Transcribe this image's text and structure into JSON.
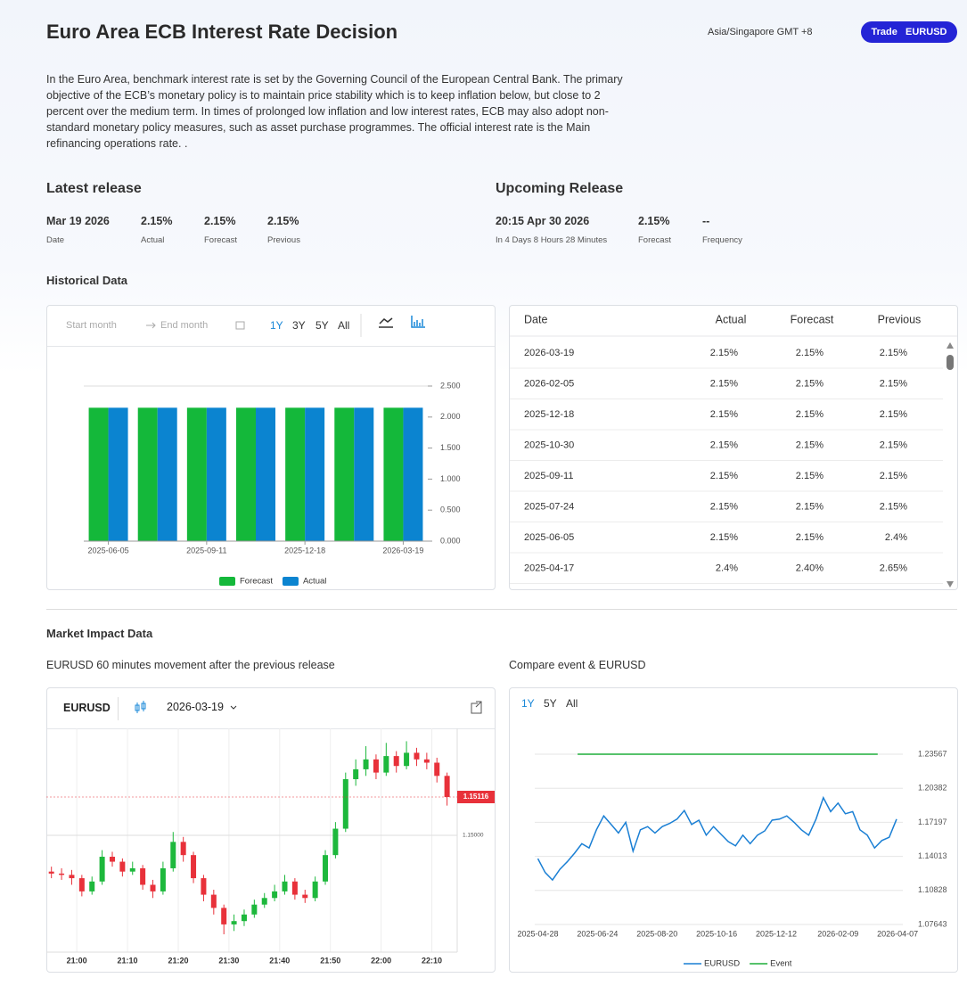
{
  "header": {
    "title": "Euro Area ECB Interest Rate Decision",
    "timezone": "Asia/Singapore GMT +8",
    "trade_button": {
      "label": "Trade",
      "symbol": "EURUSD"
    }
  },
  "description": "In the Euro Area, benchmark interest rate is set by the Governing Council of the European Central Bank. The primary objective of the ECB’s monetary policy is to maintain price stability which is to keep inflation below, but close to 2 percent over the medium term. In times of prolonged low inflation and low interest rates, ECB may also adopt non-standard monetary policy measures, such as asset purchase programmes. The official interest rate is the Main refinancing operations rate. .",
  "latest_release": {
    "heading": "Latest release",
    "items": [
      {
        "value": "Mar 19 2026",
        "label": "Date"
      },
      {
        "value": "2.15%",
        "label": "Actual"
      },
      {
        "value": "2.15%",
        "label": "Forecast"
      },
      {
        "value": "2.15%",
        "label": "Previous"
      }
    ]
  },
  "upcoming_release": {
    "heading": "Upcoming Release",
    "items": [
      {
        "value": "20:15 Apr 30 2026",
        "label": "In 4 Days 8 Hours 28 Minutes"
      },
      {
        "value": "2.15%",
        "label": "Forecast"
      },
      {
        "value": "--",
        "label": "Frequency"
      }
    ]
  },
  "historical": {
    "heading": "Historical Data",
    "start_placeholder": "Start month",
    "end_placeholder": "End month",
    "ranges": [
      "1Y",
      "3Y",
      "5Y",
      "All"
    ],
    "active_range": "1Y"
  },
  "table": {
    "columns": [
      "Date",
      "Actual",
      "Forecast",
      "Previous"
    ],
    "rows": [
      [
        "2026-03-19",
        "2.15%",
        "2.15%",
        "2.15%"
      ],
      [
        "2026-02-05",
        "2.15%",
        "2.15%",
        "2.15%"
      ],
      [
        "2025-12-18",
        "2.15%",
        "2.15%",
        "2.15%"
      ],
      [
        "2025-10-30",
        "2.15%",
        "2.15%",
        "2.15%"
      ],
      [
        "2025-09-11",
        "2.15%",
        "2.15%",
        "2.15%"
      ],
      [
        "2025-07-24",
        "2.15%",
        "2.15%",
        "2.15%"
      ],
      [
        "2025-06-05",
        "2.15%",
        "2.15%",
        "2.4%"
      ],
      [
        "2025-04-17",
        "2.4%",
        "2.40%",
        "2.65%"
      ]
    ]
  },
  "market_impact": {
    "heading": "Market Impact Data",
    "left_title": "EURUSD 60 minutes movement after the previous release",
    "right_title": "Compare event & EURUSD",
    "symbol": "EURUSD",
    "date": "2026-03-19",
    "ranges": [
      "1Y",
      "5Y",
      "All"
    ],
    "active_range": "1Y"
  },
  "chart_data": [
    {
      "type": "bar",
      "categories": [
        "2025-06-05",
        null,
        "2025-09-11",
        null,
        "2025-12-18",
        null,
        "2026-03-19"
      ],
      "series": [
        {
          "name": "Forecast",
          "color": "#14b83a",
          "values": [
            2.15,
            2.15,
            2.15,
            2.15,
            2.15,
            2.15,
            2.15
          ]
        },
        {
          "name": "Actual",
          "color": "#0b84d0",
          "values": [
            2.15,
            2.15,
            2.15,
            2.15,
            2.15,
            2.15,
            2.15
          ]
        }
      ],
      "ylim": [
        0,
        2.5
      ],
      "yticks": [
        {
          "value": 0,
          "label": "0.000"
        },
        {
          "value": 0.5,
          "label": "0.500"
        },
        {
          "value": 1,
          "label": "1.000"
        },
        {
          "value": 1.5,
          "label": "1.500"
        },
        {
          "value": 2,
          "label": "2.000"
        },
        {
          "value": 2.5,
          "label": "2.500"
        }
      ],
      "grid": false
    },
    {
      "type": "candlestick",
      "x": [
        "20:55",
        "20:57",
        "20:59",
        "21:01",
        "21:03",
        "21:05",
        "21:07",
        "21:09",
        "21:11",
        "21:13",
        "21:15",
        "21:17",
        "21:19",
        "21:21",
        "21:23",
        "21:25",
        "21:27",
        "21:29",
        "21:31",
        "21:33",
        "21:35",
        "21:37",
        "21:39",
        "21:41",
        "21:43",
        "21:45",
        "21:47",
        "21:49",
        "21:51",
        "21:53",
        "21:55",
        "21:57",
        "21:59",
        "22:01",
        "22:03",
        "22:05",
        "22:07",
        "22:09",
        "22:11",
        "22:13"
      ],
      "open": [
        1.1489,
        1.14884,
        1.1488,
        1.1487,
        1.1483,
        1.1486,
        1.14935,
        1.1492,
        1.1489,
        1.149,
        1.1485,
        1.1483,
        1.149,
        1.1498,
        1.1494,
        1.1487,
        1.1482,
        1.1478,
        1.1473,
        1.1474,
        1.1476,
        1.1479,
        1.1481,
        1.1483,
        1.1486,
        1.1482,
        1.1481,
        1.1486,
        1.1494,
        1.1502,
        1.1517,
        1.152,
        1.1523,
        1.1519,
        1.1524,
        1.1521,
        1.1525,
        1.1523,
        1.1522,
        1.1518
      ],
      "high": [
        1.14905,
        1.149,
        1.14895,
        1.1488,
        1.14875,
        1.14955,
        1.1495,
        1.1493,
        1.1492,
        1.1491,
        1.14865,
        1.1492,
        1.1501,
        1.14995,
        1.1495,
        1.1488,
        1.14835,
        1.1479,
        1.1476,
        1.14775,
        1.14805,
        1.14825,
        1.1485,
        1.1488,
        1.1487,
        1.14835,
        1.14875,
        1.14955,
        1.1504,
        1.1519,
        1.1523,
        1.1527,
        1.15245,
        1.1528,
        1.15255,
        1.15285,
        1.15265,
        1.1525,
        1.15235,
        1.1519
      ],
      "low": [
        1.1487,
        1.14865,
        1.1485,
        1.14815,
        1.1482,
        1.1485,
        1.14905,
        1.14875,
        1.1488,
        1.14835,
        1.1481,
        1.1482,
        1.1489,
        1.1492,
        1.14855,
        1.148,
        1.1476,
        1.147,
        1.1471,
        1.14725,
        1.1475,
        1.1478,
        1.148,
        1.1482,
        1.14805,
        1.14795,
        1.148,
        1.1485,
        1.1493,
        1.1501,
        1.1515,
        1.1518,
        1.1517,
        1.1518,
        1.1519,
        1.152,
        1.1521,
        1.152,
        1.1516,
        1.1509
      ],
      "close": [
        1.14884,
        1.1488,
        1.1487,
        1.1483,
        1.1486,
        1.14935,
        1.1492,
        1.1489,
        1.149,
        1.1485,
        1.1483,
        1.149,
        1.1498,
        1.1494,
        1.1487,
        1.1482,
        1.1478,
        1.1473,
        1.1474,
        1.1476,
        1.1479,
        1.1481,
        1.1483,
        1.1486,
        1.1482,
        1.1481,
        1.1486,
        1.1494,
        1.1502,
        1.1517,
        1.152,
        1.1523,
        1.1519,
        1.1524,
        1.1521,
        1.1525,
        1.1523,
        1.1522,
        1.1518,
        1.15116
      ],
      "xlim": [
        "20:54",
        "22:15"
      ],
      "xticks": [
        "21:00",
        "21:10",
        "21:20",
        "21:30",
        "21:40",
        "21:50",
        "22:00",
        "22:10"
      ],
      "ylim": [
        1.14646,
        1.15324
      ],
      "yticks": [
        {
          "value": 1.15,
          "label": "1.15000"
        }
      ],
      "last_price": 1.15116,
      "up_color": "#1db83c",
      "down_color": "#e8313a",
      "grid": true
    },
    {
      "type": "line",
      "x": [
        "2025-04-28",
        "2025-05-05",
        "2025-05-12",
        "2025-05-19",
        "2025-05-26",
        "2025-06-02",
        "2025-06-09",
        "2025-06-16",
        "2025-06-23",
        "2025-06-30",
        "2025-07-07",
        "2025-07-14",
        "2025-07-21",
        "2025-07-28",
        "2025-08-04",
        "2025-08-11",
        "2025-08-18",
        "2025-08-25",
        "2025-09-01",
        "2025-09-08",
        "2025-09-15",
        "2025-09-22",
        "2025-09-29",
        "2025-10-06",
        "2025-10-13",
        "2025-10-20",
        "2025-10-27",
        "2025-11-03",
        "2025-11-10",
        "2025-11-17",
        "2025-11-24",
        "2025-12-01",
        "2025-12-08",
        "2025-12-15",
        "2025-12-22",
        "2025-12-29",
        "2026-01-05",
        "2026-01-12",
        "2026-01-19",
        "2026-01-26",
        "2026-02-02",
        "2026-02-09",
        "2026-02-16",
        "2026-02-23",
        "2026-03-02",
        "2026-03-09",
        "2026-03-16",
        "2026-03-23",
        "2026-03-30",
        "2026-04-06"
      ],
      "series": [
        {
          "name": "EURUSD",
          "color": "#1a7fd4",
          "values": [
            1.138,
            1.125,
            1.118,
            1.128,
            1.135,
            1.143,
            1.152,
            1.148,
            1.165,
            1.178,
            1.17,
            1.162,
            1.172,
            1.145,
            1.165,
            1.168,
            1.162,
            1.168,
            1.171,
            1.175,
            1.183,
            1.17,
            1.174,
            1.16,
            1.168,
            1.161,
            1.154,
            1.15,
            1.16,
            1.152,
            1.16,
            1.164,
            1.174,
            1.175,
            1.178,
            1.172,
            1.165,
            1.16,
            1.175,
            1.195,
            1.182,
            1.19,
            1.18,
            1.182,
            1.165,
            1.16,
            1.148,
            1.155,
            1.158,
            1.175
          ]
        },
        {
          "name": "Event",
          "color": "#1fae3a",
          "axis": "y2",
          "x": [
            "2025-06-05",
            "2025-07-24",
            "2025-09-11",
            "2025-10-30",
            "2025-12-18",
            "2026-02-05",
            "2026-03-19"
          ],
          "values": [
            2.15,
            2.15,
            2.15,
            2.15,
            2.15,
            2.15,
            2.15
          ]
        }
      ],
      "xlim": [
        "2025-04-25",
        "2026-04-12"
      ],
      "xticks": [
        "2025-04-28",
        "2025-06-24",
        "2025-08-20",
        "2025-10-16",
        "2025-12-12",
        "2026-02-09",
        "2026-04-07"
      ],
      "ylim": [
        1.07643,
        1.249
      ],
      "yticks": [
        1.07643,
        1.10828,
        1.14013,
        1.17197,
        1.20382,
        1.23567
      ],
      "y2lim": [
        0,
        2.33
      ],
      "grid": true
    }
  ]
}
